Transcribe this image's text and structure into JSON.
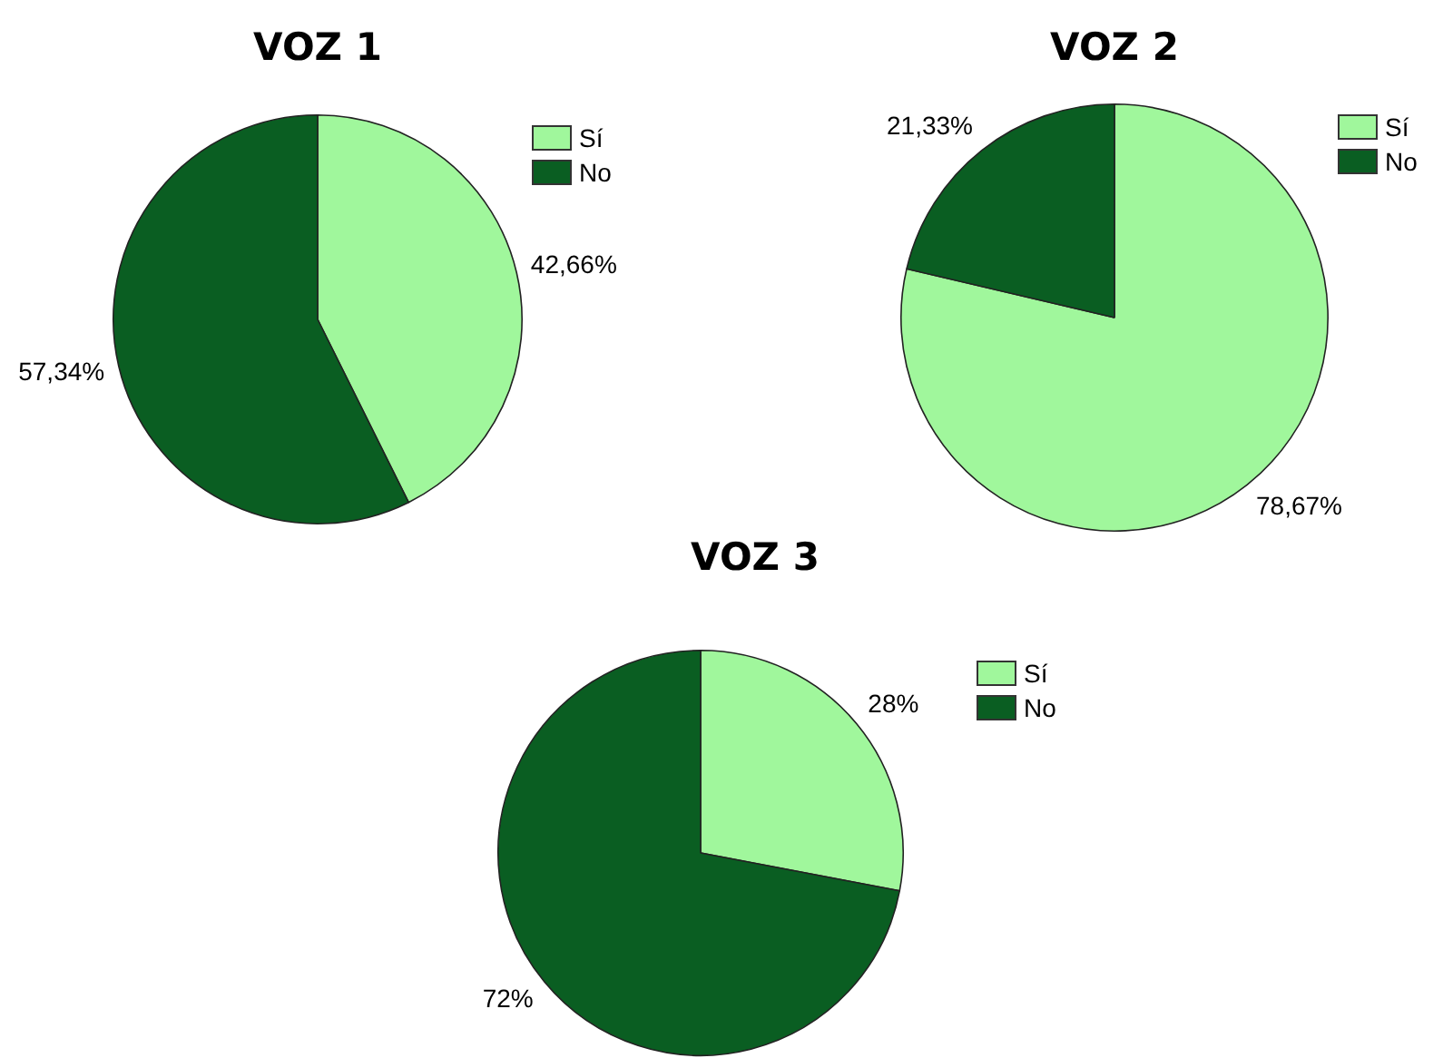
{
  "chart_data": [
    {
      "type": "pie",
      "title": "VOZ 1",
      "categories": [
        "Sí",
        "No"
      ],
      "values": [
        42.66,
        57.34
      ],
      "colors": [
        "#a0f79c",
        "#0a5e22"
      ],
      "value_labels": [
        "42,66%",
        "57,34%"
      ],
      "legend": "top right"
    },
    {
      "type": "pie",
      "title": "VOZ 2",
      "categories": [
        "Sí",
        "No"
      ],
      "values": [
        78.67,
        21.33
      ],
      "colors": [
        "#a0f79c",
        "#0a5e22"
      ],
      "value_labels": [
        "78,67%",
        "21,33%"
      ],
      "legend": "top right"
    },
    {
      "type": "pie",
      "title": "VOZ 3",
      "categories": [
        "Sí",
        "No"
      ],
      "values": [
        28,
        72
      ],
      "colors": [
        "#a0f79c",
        "#0a5e22"
      ],
      "value_labels": [
        "28%",
        "72%"
      ],
      "legend": "top right"
    }
  ]
}
